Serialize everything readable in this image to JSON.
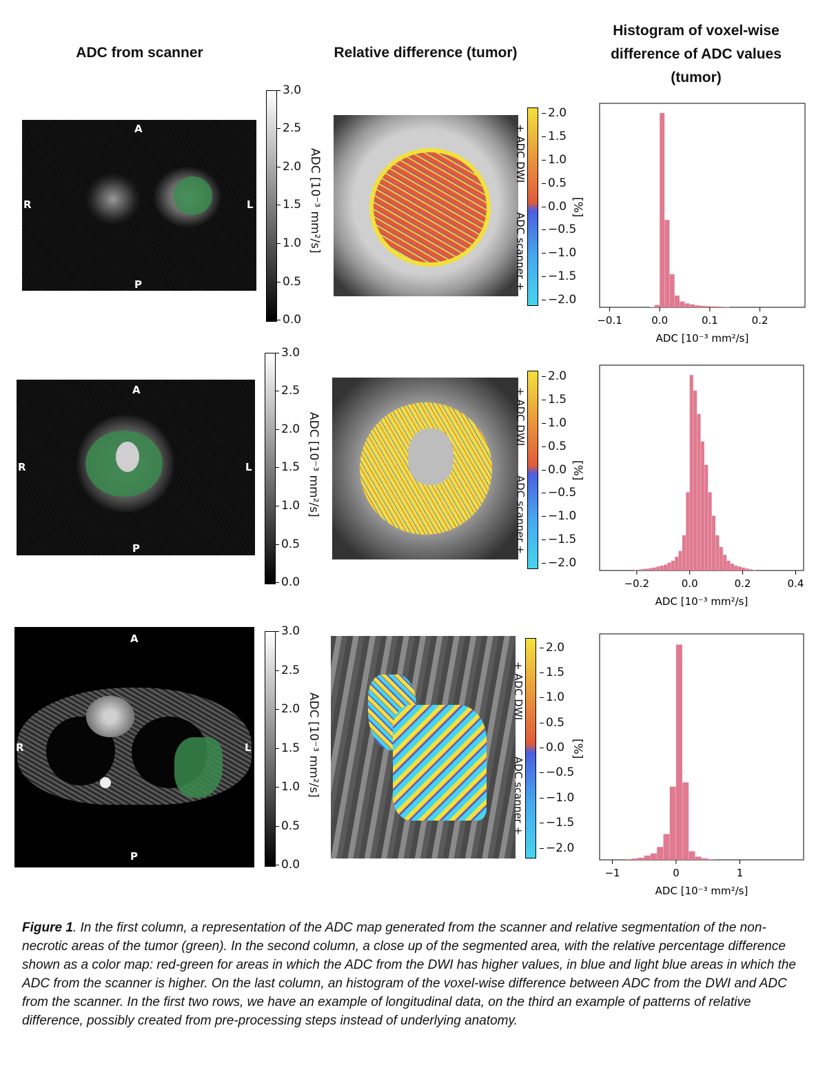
{
  "column_titles": {
    "col1": "ADC from scanner",
    "col2": "Relative difference (tumor)",
    "col3_line1": "Histogram  of voxel-wise",
    "col3_line2": "difference  of ADC values",
    "col3_line3": "(tumor)"
  },
  "orientation": {
    "anterior": "A",
    "posterior": "P",
    "right": "R",
    "left": "L"
  },
  "gray_colorbar": {
    "ticks": [
      "3.0",
      "2.5",
      "2.0",
      "1.5",
      "1.0",
      "0.5",
      "0.0"
    ],
    "label": "ADC  [10⁻³ mm²/s]"
  },
  "diff_colorbar": {
    "ticks": [
      "2.0",
      "1.5",
      "1.0",
      "0.5",
      "0.0",
      "−0.5",
      "−1.0",
      "−1.5",
      "−2.0"
    ],
    "top_label": "+ ADC DWI",
    "bottom_label": "ADC scanner +",
    "unit": "[%]"
  },
  "colors": {
    "segmentation": "#3a8a4f",
    "histogram_bar": "#e07a90",
    "diff_high": "#f2e13c",
    "diff_mid_pos": "#e05a3c",
    "diff_mid_neg": "#4b5ee0",
    "diff_low": "#46d4ee"
  },
  "chart_data": [
    {
      "type": "bar",
      "title": "",
      "xlabel": "ADC  [10⁻³ mm²/s]",
      "xlim": [
        -0.12,
        0.29
      ],
      "xticks": [
        "−0.1",
        "0.0",
        "0.1",
        "0.2"
      ],
      "xtick_values": [
        -0.1,
        0.0,
        0.1,
        0.2
      ],
      "bin_width": 0.01,
      "x": [
        -0.02,
        -0.01,
        0.0,
        0.01,
        0.02,
        0.03,
        0.04,
        0.05,
        0.06,
        0.07,
        0.08,
        0.09,
        0.1,
        0.11,
        0.12,
        0.13
      ],
      "values": [
        0.2,
        1.2,
        100,
        45,
        17,
        6,
        3,
        2,
        1.5,
        1,
        0.8,
        0.6,
        0.5,
        0.4,
        0.3,
        0.2
      ]
    },
    {
      "type": "bar",
      "title": "",
      "xlabel": "ADC  [10⁻³ mm²/s]",
      "xlim": [
        -0.34,
        0.43
      ],
      "xticks": [
        "−0.2",
        "0.0",
        "0.2",
        "0.4"
      ],
      "xtick_values": [
        -0.2,
        0.0,
        0.2,
        0.4
      ],
      "bin_width": 0.014,
      "x": [
        -0.21,
        -0.196,
        -0.182,
        -0.168,
        -0.154,
        -0.14,
        -0.126,
        -0.112,
        -0.098,
        -0.084,
        -0.07,
        -0.056,
        -0.042,
        -0.028,
        -0.014,
        0.0,
        0.014,
        0.028,
        0.042,
        0.056,
        0.07,
        0.084,
        0.098,
        0.112,
        0.126,
        0.14,
        0.154,
        0.168,
        0.182,
        0.196,
        0.21,
        0.224,
        0.238
      ],
      "values": [
        0.3,
        0.5,
        0.7,
        0.9,
        1.2,
        1.5,
        2,
        2.5,
        3,
        4,
        5,
        7,
        10,
        18,
        40,
        100,
        92,
        80,
        66,
        54,
        40,
        28,
        18,
        12,
        8,
        5,
        3.5,
        2.5,
        2,
        1.5,
        1,
        0.6,
        0.3
      ]
    },
    {
      "type": "bar",
      "title": "",
      "xlabel": "ADC  [10⁻³ mm²/s]",
      "xlim": [
        -1.2,
        2.0
      ],
      "xticks": [
        "−1",
        "0",
        "1"
      ],
      "xtick_values": [
        -1,
        0,
        1
      ],
      "bin_width": 0.1,
      "x": [
        -0.8,
        -0.7,
        -0.6,
        -0.5,
        -0.4,
        -0.3,
        -0.2,
        -0.1,
        0.0,
        0.1,
        0.2,
        0.3,
        0.4,
        0.5
      ],
      "values": [
        0.3,
        0.6,
        1,
        2,
        3,
        6,
        12,
        34,
        100,
        36,
        4,
        1.5,
        0.7,
        0.3
      ]
    }
  ],
  "caption": {
    "label": "Figure 1",
    "text": ". In the first column, a representation of the ADC map generated from the scanner and relative segmentation of the non-necrotic areas of the tumor (green). In the second column, a close up of the segmented area, with the relative percentage difference shown as a color map: red-green for areas in which the ADC from the DWI has higher values, in blue and light blue areas in which the ADC from the scanner is higher. On the last column, an histogram of the voxel-wise difference between ADC from the DWI and ADC from the scanner. In the first two rows, we have an example of longitudinal data, on the third an example of patterns of relative difference, possibly created from pre-processing steps instead of underlying anatomy."
  }
}
